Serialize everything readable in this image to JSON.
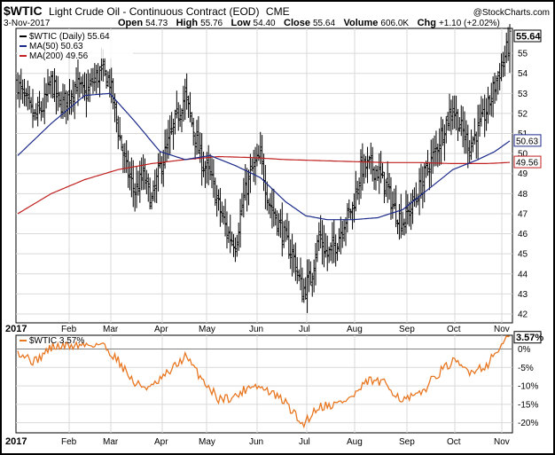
{
  "header": {
    "symbol": "$WTIC",
    "name": "Light Crude Oil - Continuous Contract (EOD)",
    "exchange": "CME",
    "watermark": "@StockCharts.com",
    "date": "3-Nov-2017",
    "open_label": "Open",
    "open": "54.73",
    "high_label": "High",
    "high": "55.76",
    "low_label": "Low",
    "low": "54.40",
    "close_label": "Close",
    "close": "55.64",
    "volume_label": "Volume",
    "volume": "606.0K",
    "chg_label": "Chg",
    "chg": "+1.10 (+2.02%)"
  },
  "legend": {
    "price": "$WTIC (Daily) 55.64",
    "ma50": "MA(50) 50.63",
    "ma200": "MA(200) 49.56",
    "indicator": "$WTIC 3.57%"
  },
  "colors": {
    "price": "#000000",
    "ma50": "#1b2a8a",
    "ma200": "#c02020",
    "indicator": "#e87722",
    "grid": "#d9d9d9",
    "zero_line": "#808080"
  },
  "chart_data": [
    {
      "type": "ohlc",
      "title": "$WTIC (Daily) 55.64",
      "x_labels": [
        "2017",
        "Feb",
        "Mar",
        "Apr",
        "May",
        "Jun",
        "Jul",
        "Aug",
        "Sep",
        "Oct",
        "Nov"
      ],
      "y_ticks": [
        "42",
        "43",
        "44",
        "45",
        "46",
        "47",
        "48",
        "49",
        "50",
        "51",
        "52",
        "53",
        "54",
        "55"
      ],
      "ylim": [
        41.6,
        56.2
      ],
      "grid": true,
      "legend_position": "top-left",
      "last_values": {
        "price": "55.64",
        "ma50": "50.63",
        "ma200": "49.56"
      },
      "price_anchors": [
        [
          0,
          53.5
        ],
        [
          5,
          52.5
        ],
        [
          10,
          51.8
        ],
        [
          15,
          52.3
        ],
        [
          20,
          53.6
        ],
        [
          25,
          52.4
        ],
        [
          30,
          52.8
        ],
        [
          35,
          53.5
        ],
        [
          40,
          52.9
        ],
        [
          45,
          53.6
        ],
        [
          50,
          54.1
        ],
        [
          55,
          53.6
        ],
        [
          60,
          51.2
        ],
        [
          65,
          49.2
        ],
        [
          70,
          48.1
        ],
        [
          75,
          48.9
        ],
        [
          80,
          47.6
        ],
        [
          85,
          49.3
        ],
        [
          90,
          50.5
        ],
        [
          95,
          51.8
        ],
        [
          100,
          52.9
        ],
        [
          105,
          51.2
        ],
        [
          110,
          49.6
        ],
        [
          115,
          48.9
        ],
        [
          120,
          47.4
        ],
        [
          125,
          46.1
        ],
        [
          130,
          45.5
        ],
        [
          135,
          47.8
        ],
        [
          140,
          49.2
        ],
        [
          145,
          49.8
        ],
        [
          150,
          47.6
        ],
        [
          155,
          46.7
        ],
        [
          160,
          45.7
        ],
        [
          165,
          44.8
        ],
        [
          170,
          43.1
        ],
        [
          175,
          43.8
        ],
        [
          180,
          45.9
        ],
        [
          185,
          44.9
        ],
        [
          190,
          45.5
        ],
        [
          195,
          46.6
        ],
        [
          200,
          47.3
        ],
        [
          205,
          49.2
        ],
        [
          210,
          49.4
        ],
        [
          215,
          49.1
        ],
        [
          220,
          48.4
        ],
        [
          225,
          47.2
        ],
        [
          230,
          46.6
        ],
        [
          235,
          47.3
        ],
        [
          240,
          48.2
        ],
        [
          245,
          49.3
        ],
        [
          250,
          50.2
        ],
        [
          255,
          51.4
        ],
        [
          260,
          52.3
        ],
        [
          265,
          51.2
        ],
        [
          270,
          50.4
        ],
        [
          275,
          51.2
        ],
        [
          280,
          52.1
        ],
        [
          285,
          53.4
        ],
        [
          290,
          54.6
        ],
        [
          294,
          55.64
        ]
      ],
      "ma50_anchors": [
        [
          0,
          49.9
        ],
        [
          20,
          51.5
        ],
        [
          40,
          52.9
        ],
        [
          55,
          53.0
        ],
        [
          70,
          51.6
        ],
        [
          85,
          50.1
        ],
        [
          100,
          49.7
        ],
        [
          115,
          49.9
        ],
        [
          130,
          49.4
        ],
        [
          145,
          48.8
        ],
        [
          160,
          47.6
        ],
        [
          172,
          46.9
        ],
        [
          185,
          46.7
        ],
        [
          200,
          46.7
        ],
        [
          215,
          46.8
        ],
        [
          230,
          47.2
        ],
        [
          245,
          48.2
        ],
        [
          260,
          49.2
        ],
        [
          275,
          49.7
        ],
        [
          285,
          50.1
        ],
        [
          294,
          50.63
        ]
      ],
      "ma200_anchors": [
        [
          0,
          47.0
        ],
        [
          20,
          48.0
        ],
        [
          40,
          48.7
        ],
        [
          60,
          49.2
        ],
        [
          80,
          49.5
        ],
        [
          100,
          49.7
        ],
        [
          120,
          49.85
        ],
        [
          140,
          49.8
        ],
        [
          160,
          49.7
        ],
        [
          180,
          49.65
        ],
        [
          200,
          49.6
        ],
        [
          220,
          49.55
        ],
        [
          240,
          49.55
        ],
        [
          260,
          49.5
        ],
        [
          280,
          49.5
        ],
        [
          294,
          49.56
        ]
      ]
    },
    {
      "type": "line",
      "title": "$WTIC 3.57%",
      "x_labels": [
        "2017",
        "Feb",
        "Mar",
        "Apr",
        "May",
        "Jun",
        "Jul",
        "Aug",
        "Sep",
        "Oct",
        "Nov"
      ],
      "y_ticks": [
        "-20%",
        "-15%",
        "-10%",
        "-5%",
        "0%"
      ],
      "ylim": [
        -22.5,
        3.5
      ],
      "last_value": "3.57%",
      "grid": true,
      "legend_position": "top-left",
      "series": [
        {
          "name": "$WTIC",
          "unit": "%",
          "anchors": [
            [
              0,
              -0.5
            ],
            [
              10,
              -3.5
            ],
            [
              20,
              0.5
            ],
            [
              35,
              1.0
            ],
            [
              50,
              1.4
            ],
            [
              60,
              -3.0
            ],
            [
              70,
              -9.5
            ],
            [
              80,
              -10.5
            ],
            [
              90,
              -6.5
            ],
            [
              100,
              -2.0
            ],
            [
              110,
              -8.0
            ],
            [
              120,
              -13.5
            ],
            [
              130,
              -13.0
            ],
            [
              140,
              -9.5
            ],
            [
              150,
              -11.5
            ],
            [
              160,
              -14.5
            ],
            [
              170,
              -20.5
            ],
            [
              180,
              -15.5
            ],
            [
              190,
              -15.0
            ],
            [
              200,
              -13.0
            ],
            [
              210,
              -8.5
            ],
            [
              220,
              -9.5
            ],
            [
              230,
              -14.0
            ],
            [
              240,
              -12.5
            ],
            [
              250,
              -7.0
            ],
            [
              260,
              -3.5
            ],
            [
              270,
              -6.0
            ],
            [
              280,
              -4.5
            ],
            [
              288,
              0.5
            ],
            [
              294,
              3.57
            ]
          ]
        }
      ]
    }
  ]
}
